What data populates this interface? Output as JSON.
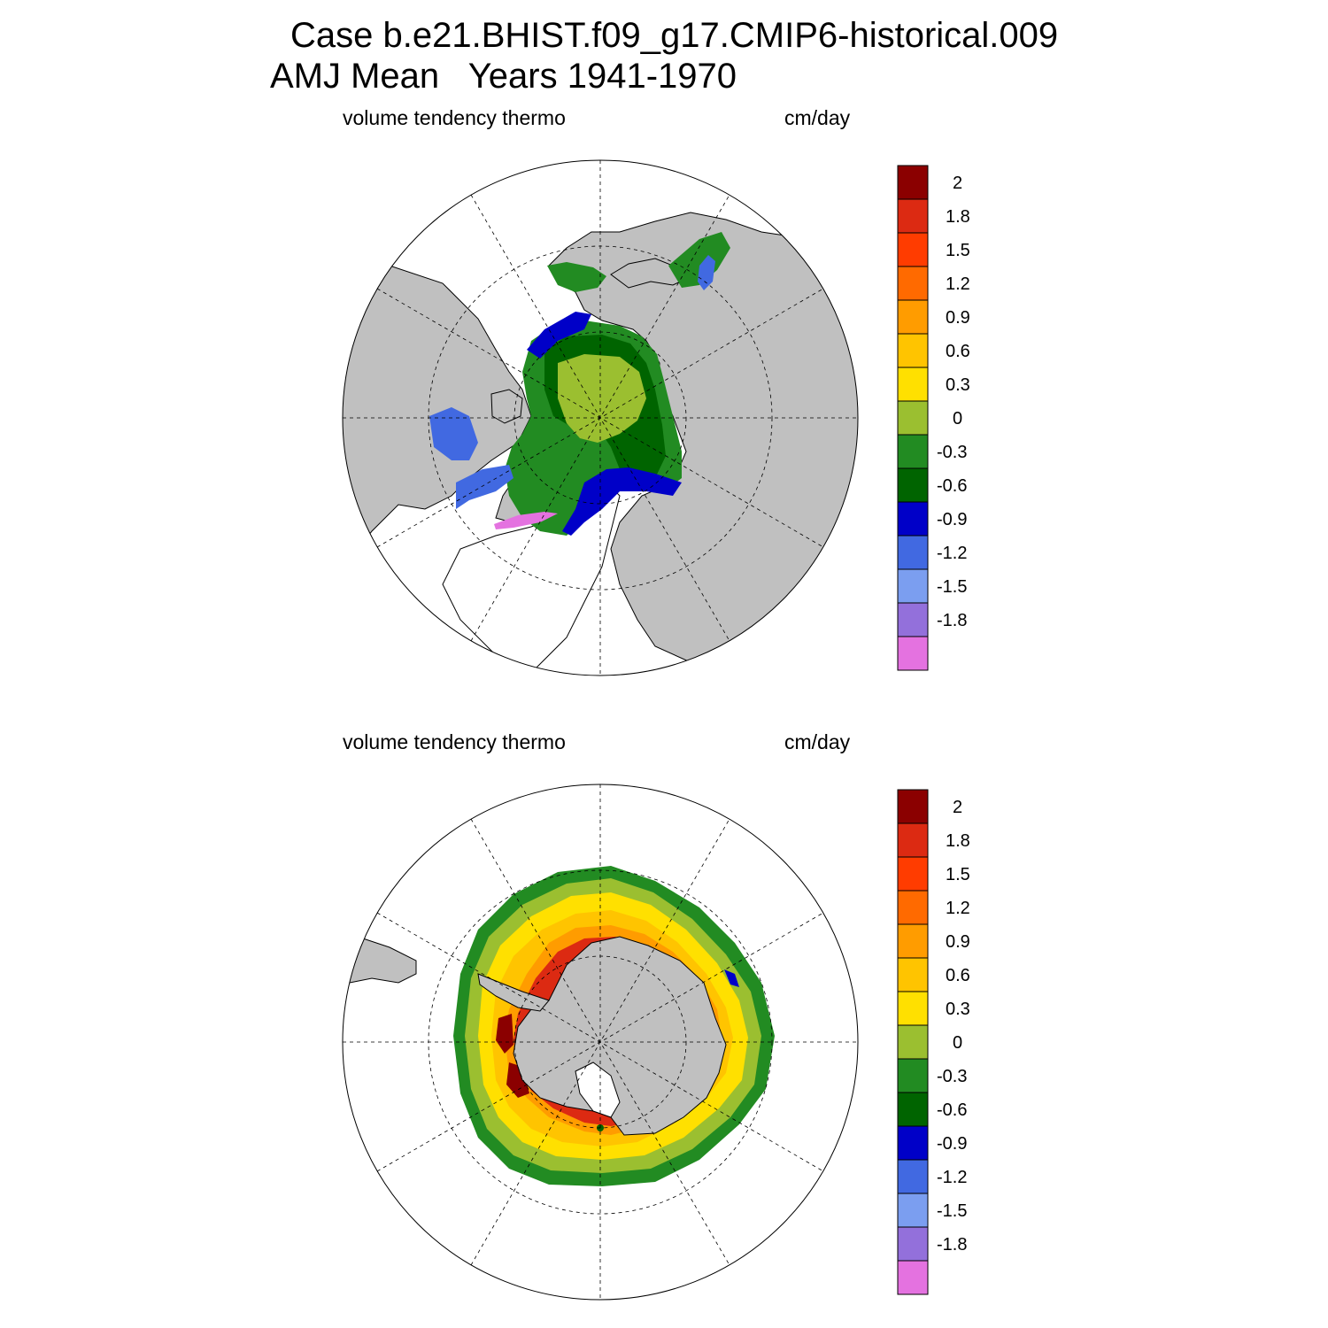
{
  "title": {
    "line1": "Case b.e21.BHIST.f09_g17.CMIP6-historical.009",
    "line2": "AMJ Mean   Years 1941-1970"
  },
  "panels": [
    {
      "id": "north",
      "hemisphere": "Arctic (north polar stereographic)",
      "variable_label": "volume tendency thermo",
      "units_label": "cm/day"
    },
    {
      "id": "south",
      "hemisphere": "Antarctic (south polar stereographic)",
      "variable_label": "volume tendency thermo",
      "units_label": "cm/day"
    }
  ],
  "colorbar": {
    "labels": [
      "2",
      "1.8",
      "1.5",
      "1.2",
      "0.9",
      "0.6",
      "0.3",
      "0",
      "-0.3",
      "-0.6",
      "-0.9",
      "-1.2",
      "-1.5",
      "-1.8"
    ],
    "colors": [
      "#8b0000",
      "#dc2a12",
      "#ff3c00",
      "#ff6a00",
      "#ff9c00",
      "#ffc400",
      "#ffe000",
      "#9bbf30",
      "#228b22",
      "#006400",
      "#0000c8",
      "#4169e1",
      "#7b9ef0",
      "#9370db",
      "#e472e0"
    ]
  },
  "colors": {
    "land": "#c0c0c0",
    "ocean": "#ffffff",
    "graticule": "#000000"
  }
}
